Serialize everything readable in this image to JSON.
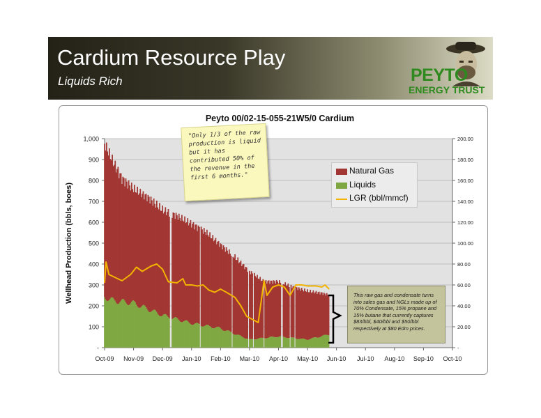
{
  "header": {
    "title": "Cardium Resource Play",
    "subtitle": "Liquids Rich"
  },
  "logo": {
    "name": "PEYTO",
    "tagline": "ENERGY TRUST"
  },
  "colors": {
    "natural_gas": "#a23632",
    "liquids": "#80a842",
    "lgr": "#f2b400",
    "banner_dark": "#242217",
    "logo_green": "#2e8a1e"
  },
  "sticky_note": "\"Only 1/3 of the raw production is liquid but it has contributed 50% of the revenue in the first 6 months.\"",
  "callout": "This raw gas and condensate turns into sales gas and NGLs made up of 70% Condensate, 15% propane and 15% butane that currently captures $83/bbl, $40/bbl and $50/bbl respectively at $80 Edm prices.",
  "chart_data": {
    "type": "area",
    "title": "Peyto 00/02-15-055-21W5/0 Cardium",
    "ylabel": "Wellhead Production (bbls, boes)",
    "y2label": "",
    "ylim": [
      0,
      1000
    ],
    "y2lim": [
      0,
      200
    ],
    "yticks": [
      "-",
      "100",
      "200",
      "300",
      "400",
      "500",
      "600",
      "700",
      "800",
      "900",
      "1,000"
    ],
    "y2ticks": [
      "-",
      "20.00",
      "40.00",
      "60.00",
      "80.00",
      "100.00",
      "120.00",
      "140.00",
      "160.00",
      "180.00",
      "200.00"
    ],
    "xlabels": [
      "Oct-09",
      "Nov-09",
      "Dec-09",
      "Jan-10",
      "Feb-10",
      "Mar-10",
      "Apr-10",
      "May-10",
      "Jun-10",
      "Jul-10",
      "Aug-10",
      "Sep-10",
      "Oct-10"
    ],
    "x_unit": "months since Oct-09",
    "grid": true,
    "legend_position": "right",
    "legend": [
      "Natural Gas",
      "Liquids",
      "LGR  (bbl/mmcf)"
    ],
    "series": [
      {
        "name": "Natural Gas",
        "type": "stacked-bar",
        "axis": "left",
        "points": [
          [
            0,
            990
          ],
          [
            0.3,
            900
          ],
          [
            0.6,
            820
          ],
          [
            1.0,
            770
          ],
          [
            1.5,
            730
          ],
          [
            2.0,
            670
          ],
          [
            2.5,
            640
          ],
          [
            3.0,
            600
          ],
          [
            3.5,
            560
          ],
          [
            4.0,
            500
          ],
          [
            4.5,
            440
          ],
          [
            5.0,
            370
          ],
          [
            5.5,
            320
          ],
          [
            6.0,
            320
          ],
          [
            6.5,
            295
          ],
          [
            7.0,
            275
          ],
          [
            7.5,
            265
          ],
          [
            7.75,
            255
          ]
        ]
      },
      {
        "name": "Liquids",
        "type": "stacked-bar",
        "axis": "left",
        "points": [
          [
            0,
            250
          ],
          [
            0.3,
            232
          ],
          [
            1.0,
            220
          ],
          [
            2.0,
            160
          ],
          [
            3.0,
            120
          ],
          [
            4.0,
            95
          ],
          [
            5.0,
            40
          ],
          [
            6.0,
            55
          ],
          [
            7.0,
            40
          ],
          [
            7.75,
            65
          ]
        ]
      },
      {
        "name": "LGR  (bbl/mmcf)",
        "type": "line",
        "axis": "right",
        "points": [
          [
            0,
            62
          ],
          [
            0.05,
            82
          ],
          [
            0.15,
            70
          ],
          [
            0.3,
            68
          ],
          [
            0.6,
            64
          ],
          [
            0.9,
            70
          ],
          [
            1.1,
            77
          ],
          [
            1.3,
            73
          ],
          [
            1.6,
            78
          ],
          [
            1.8,
            80
          ],
          [
            2.0,
            75
          ],
          [
            2.2,
            63
          ],
          [
            2.5,
            62
          ],
          [
            2.7,
            66
          ],
          [
            2.8,
            60
          ],
          [
            3.0,
            60
          ],
          [
            3.2,
            59
          ],
          [
            3.4,
            60
          ],
          [
            3.6,
            55
          ],
          [
            3.8,
            53
          ],
          [
            4.0,
            56
          ],
          [
            4.2,
            53
          ],
          [
            4.5,
            48
          ],
          [
            4.7,
            40
          ],
          [
            4.9,
            30
          ],
          [
            5.1,
            27
          ],
          [
            5.3,
            24
          ],
          [
            5.5,
            64
          ],
          [
            5.6,
            50
          ],
          [
            5.8,
            58
          ],
          [
            6.0,
            60
          ],
          [
            6.2,
            58
          ],
          [
            6.4,
            50
          ],
          [
            6.6,
            60
          ],
          [
            6.8,
            60
          ],
          [
            7.0,
            59
          ],
          [
            7.3,
            59
          ],
          [
            7.5,
            58
          ],
          [
            7.6,
            60
          ],
          [
            7.75,
            56
          ]
        ]
      }
    ]
  }
}
